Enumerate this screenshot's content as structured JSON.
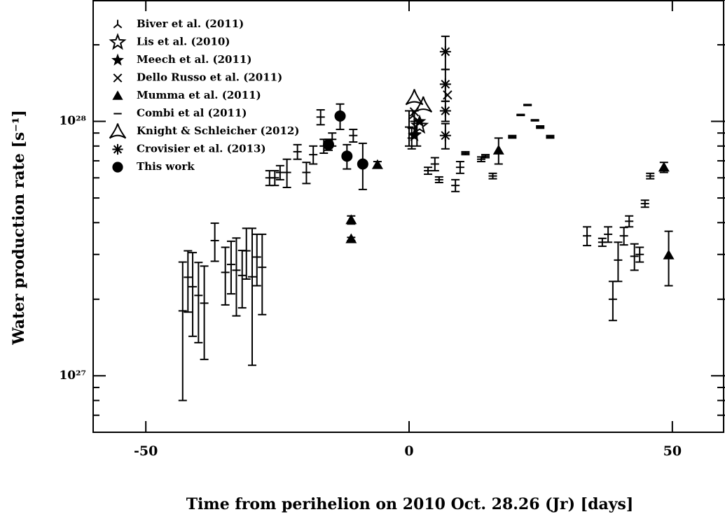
{
  "chart_data": {
    "type": "scatter",
    "xlabel": "Time from perihelion on 2010 Oct. 28.26 (Jr) [days]",
    "ylabel": "Water production rate [s⁻¹]",
    "xlim": [
      -60,
      60
    ],
    "xticks": [
      -50,
      0,
      50
    ],
    "ylim": [
      6e+26,
      3e+28
    ],
    "ylog": true,
    "yticks": [
      {
        "value": 1e+27,
        "label": "10²⁷"
      },
      {
        "value": 1e+28,
        "label": "10²⁸"
      }
    ],
    "yminorticks": [
      7e+26,
      8e+26,
      9e+26,
      2e+27,
      3e+27,
      4e+27,
      5e+27,
      6e+27,
      7e+27,
      8e+27,
      9e+27,
      2e+28,
      3e+28
    ],
    "legend": "upper left",
    "series": [
      {
        "name": "Biver et al. (2011)",
        "marker": "tri",
        "color": "#000",
        "x": [
          0.7,
          1.6
        ],
        "values": [
          1.05e+28,
          9.6e+27
        ],
        "errors": [
          0,
          0
        ]
      },
      {
        "name": "Lis et al. (2010)",
        "marker": "star-open",
        "color": "#000",
        "x": [
          2.0
        ],
        "values": [
          9.6e+27
        ],
        "errors": [
          0
        ]
      },
      {
        "name": "Meech et al. (2011)",
        "marker": "star",
        "color": "#000",
        "x": [
          2.0,
          1.0
        ],
        "values": [
          1e+28,
          8.8e+27
        ],
        "errors": [
          0,
          0
        ]
      },
      {
        "name": "Dello Russo et al. (2011)",
        "marker": "cross",
        "color": "#000",
        "x": [
          1.0,
          7.3
        ],
        "values": [
          1.09e+28,
          1.27e+28
        ],
        "errors": [
          0,
          0
        ]
      },
      {
        "name": "Mumma et al. (2011)",
        "marker": "triangle",
        "color": "#000",
        "x": [
          -11.0,
          -11.0,
          -6.0,
          17.0,
          48.4,
          49.3
        ],
        "values": [
          4.1e+27,
          3.45e+27,
          6.75e+27,
          7.7e+27,
          6.6e+27,
          2.98e+27
        ],
        "errors": [
          1.5e+26,
          5e+25,
          2e+26,
          9e+26,
          3e+26,
          7.2e+26
        ]
      },
      {
        "name": "Combi et al (2011)",
        "marker": "dash",
        "color": "#000",
        "x": [
          -43,
          -42,
          -41.1,
          -40,
          -38.9,
          -36.9,
          -34.9,
          -33.8,
          -32.8,
          -31.7,
          -30.9,
          -29.8,
          -28.9,
          -27.9,
          -26.5,
          -25.5,
          -24.5,
          -23.2,
          -21.2,
          -19.5,
          -18.2,
          -16.2,
          -16.8,
          -14.6,
          -10.6,
          0.0,
          0.5,
          1.0,
          1.5,
          3.6,
          4.9,
          5.7,
          8.8,
          9.7,
          10.7,
          13.7,
          14.5,
          15.9,
          19.6,
          21.2,
          22.5,
          23.9,
          24.9,
          26.8,
          33.8,
          36.7,
          37.8,
          38.7,
          39.7,
          40.8,
          41.8,
          42.8,
          43.8,
          44.8,
          45.8
        ],
        "values": [
          1.8e+27,
          2.44e+27,
          2.24e+27,
          2.07e+27,
          1.93e+27,
          3.4e+27,
          2.55e+27,
          2.74e+27,
          2.6e+27,
          2.48e+27,
          3.1e+27,
          2.45e+27,
          2.93e+27,
          2.67e+27,
          6e+27,
          6e+27,
          6.3e+27,
          6.3e+27,
          7.6e+27,
          6.3e+27,
          7.4e+27,
          8e+27,
          1.04e+28,
          8.5e+27,
          8.8e+27,
          9.5e+27,
          8.6e+27,
          1e+28,
          9e+27,
          6.4e+27,
          6.8e+27,
          5.9e+27,
          5.6e+27,
          6.6e+27,
          7.5e+27,
          7.1e+27,
          7.3e+27,
          6.1e+27,
          8.7e+27,
          1.06e+28,
          1.16e+28,
          1.01e+28,
          9.5e+27,
          8.7e+27,
          3.55e+27,
          3.35e+27,
          3.6e+27,
          2e+27,
          2.85e+27,
          3.55e+27,
          4.05e+27,
          2.95e+27,
          3e+27,
          4.75e+27,
          6.1e+27
        ],
        "errors": [
          1e+27,
          6.6e+26,
          8.1e+26,
          7.2e+26,
          7.7e+26,
          5.8e+26,
          6.5e+26,
          6.4e+26,
          8.8e+26,
          6.3e+26,
          7e+26,
          1.35e+27,
          6.7e+26,
          9.3e+26,
          4e+26,
          4e+26,
          4e+26,
          8e+26,
          5e+26,
          6e+26,
          6e+26,
          5e+26,
          7e+26,
          5e+26,
          5e+26,
          1.5e+27,
          8e+26,
          1e+27,
          1e+27,
          2e+26,
          4e+26,
          1.5e+26,
          3e+26,
          3.5e+26,
          1e+26,
          1.5e+26,
          1e+26,
          1.5e+26,
          1e+26,
          5e+25,
          5e+25,
          5e+25,
          1e+26,
          1e+26,
          3e+26,
          1.2e+26,
          2.5e+26,
          3.5e+26,
          5e+26,
          2.8e+26,
          2e+26,
          3.5e+26,
          2e+26,
          1.5e+26,
          1.5e+26
        ]
      },
      {
        "name": "Knight & Schleicher (2012)",
        "marker": "tri-open",
        "color": "#000",
        "x": [
          2.7,
          1.0
        ],
        "values": [
          1.16e+28,
          1.24e+28
        ],
        "errors": [
          0,
          0
        ]
      },
      {
        "name": "Crovisier et al. (2013)",
        "marker": "asterisk",
        "color": "#000",
        "x": [
          6.9,
          6.9,
          6.9,
          6.9
        ],
        "values": [
          1.88e+28,
          1.4e+28,
          1.1e+28,
          8.8e+27
        ],
        "errors": [
          2.8e+27,
          2e+27,
          1e+27,
          1e+27
        ]
      },
      {
        "name": "This work",
        "marker": "circle",
        "color": "#000",
        "x": [
          -13.1,
          -15.3,
          -11.8,
          -8.8
        ],
        "values": [
          1.05e+28,
          8.1e+27,
          7.3e+27,
          6.8e+27
        ],
        "errors": [
          1.2e+27,
          4e+26,
          8e+26,
          1.4e+27
        ]
      }
    ]
  }
}
